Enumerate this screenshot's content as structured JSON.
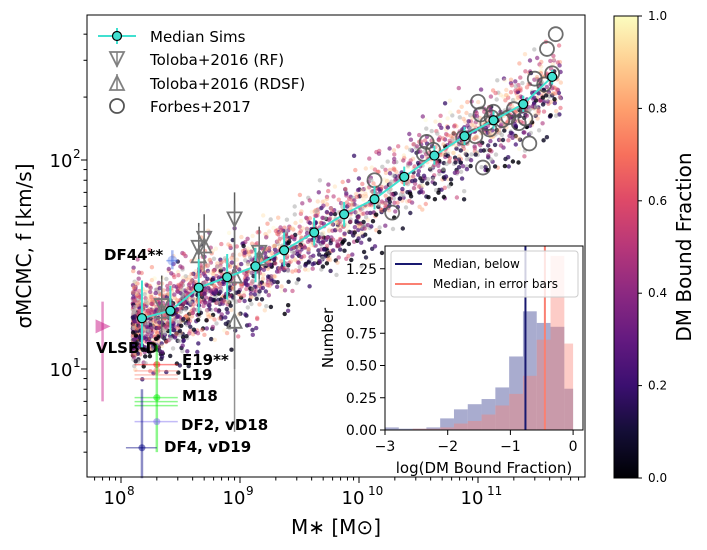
{
  "chart_data": [
    {
      "type": "scatter",
      "title": "",
      "xlabel": "M∗ [M⊙]",
      "ylabel": "σMCMC, f [km/s]",
      "xscale": "log",
      "yscale": "log",
      "xlim": [
        50000000.0,
        900000000000.0
      ],
      "ylim": [
        3,
        540
      ],
      "xticks": [
        {
          "value": 100000000.0,
          "base": "10",
          "exp": "8"
        },
        {
          "value": 1000000000.0,
          "base": "10",
          "exp": "9"
        },
        {
          "value": 10000000000.0,
          "base": "10",
          "exp": "10"
        },
        {
          "value": 100000000000.0,
          "base": "10",
          "exp": "11"
        }
      ],
      "yticks": [
        {
          "value": 10,
          "base": "10",
          "exp": "1"
        },
        {
          "value": 100,
          "base": "10",
          "exp": "2"
        }
      ],
      "legend": {
        "placement": "top-left",
        "entries": [
          {
            "label": "Median Sims",
            "marker": "circle-line",
            "color": "#40e0d0"
          },
          {
            "label": "Toloba+2016 (RF)",
            "marker": "triangle-down",
            "color": "#808080"
          },
          {
            "label": "Toloba+2016 (RDSF)",
            "marker": "triangle-up",
            "color": "#808080"
          },
          {
            "label": "Forbes+2017",
            "marker": "open-circle",
            "color": "#555555"
          }
        ]
      },
      "series": [
        {
          "name": "Median Sims",
          "color": "#40e0d0",
          "x": [
            150000000.0,
            260000000.0,
            450000000.0,
            780000000.0,
            1350000000.0,
            2350000000.0,
            4200000000.0,
            7500000000.0,
            13500000000.0,
            24000000000.0,
            43000000000.0,
            77000000000.0,
            135000000000.0,
            240000000000.0,
            420000000000.0
          ],
          "y": [
            17.5,
            19,
            24.5,
            27.5,
            31,
            37,
            45,
            55,
            65,
            83,
            105,
            130,
            155,
            185,
            250
          ],
          "yerr_low": [
            5,
            4.5,
            6,
            6,
            5,
            6,
            6,
            7,
            7,
            8,
            10,
            12,
            14,
            15,
            20
          ],
          "yerr_high": [
            9,
            6,
            9,
            8,
            7,
            8,
            8,
            8,
            10,
            10,
            12,
            14,
            16,
            18,
            20
          ]
        },
        {
          "name": "Toloba+2016 (RF)",
          "color": "#808080",
          "marker": "triangle-down",
          "points": [
            {
              "x": 220000000.0,
              "y": 20,
              "ylo": 14,
              "yhi": 28
            },
            {
              "x": 450000000.0,
              "y": 38,
              "ylo": 28,
              "yhi": 50
            },
            {
              "x": 500000000.0,
              "y": 42,
              "ylo": 32,
              "yhi": 55
            },
            {
              "x": 900000000.0,
              "y": 52,
              "ylo": 30,
              "yhi": 70
            },
            {
              "x": 1450000000.0,
              "y": 36,
              "ylo": 27,
              "yhi": 48
            }
          ]
        },
        {
          "name": "Toloba+2016 (RDSF)",
          "color": "#808080",
          "marker": "triangle-up",
          "points": [
            {
              "x": 220000000.0,
              "y": 19,
              "ylo": 14,
              "yhi": 27
            },
            {
              "x": 450000000.0,
              "y": 35,
              "ylo": 25,
              "yhi": 48
            },
            {
              "x": 500000000.0,
              "y": 39,
              "ylo": 29,
              "yhi": 52
            },
            {
              "x": 900000000.0,
              "y": 28,
              "ylo": 5,
              "yhi": 62
            },
            {
              "x": 900000000.0,
              "y": 17,
              "ylo": 10,
              "yhi": 27
            },
            {
              "x": 1450000000.0,
              "y": 34,
              "ylo": 25,
              "yhi": 46
            }
          ]
        },
        {
          "name": "Forbes+2017",
          "color": "#555555",
          "marker": "open-circle",
          "points": [
            {
              "x": 13500000000.0,
              "y": 80
            },
            {
              "x": 19000000000.0,
              "y": 56
            },
            {
              "x": 35000000000.0,
              "y": 107
            },
            {
              "x": 37000000000.0,
              "y": 122
            },
            {
              "x": 42000000000.0,
              "y": 112
            },
            {
              "x": 75000000000.0,
              "y": 128
            },
            {
              "x": 95000000000.0,
              "y": 130
            },
            {
              "x": 100000000000.0,
              "y": 190
            },
            {
              "x": 105000000000.0,
              "y": 165
            },
            {
              "x": 110000000000.0,
              "y": 92
            },
            {
              "x": 120000000000.0,
              "y": 150
            },
            {
              "x": 125000000000.0,
              "y": 140
            },
            {
              "x": 130000000000.0,
              "y": 160
            },
            {
              "x": 135000000000.0,
              "y": 170
            },
            {
              "x": 160000000000.0,
              "y": 155
            },
            {
              "x": 180000000000.0,
              "y": 160
            },
            {
              "x": 200000000000.0,
              "y": 175
            },
            {
              "x": 220000000000.0,
              "y": 150
            },
            {
              "x": 250000000000.0,
              "y": 158
            },
            {
              "x": 270000000000.0,
              "y": 120
            },
            {
              "x": 300000000000.0,
              "y": 245
            },
            {
              "x": 360000000000.0,
              "y": 230
            },
            {
              "x": 380000000000.0,
              "y": 340
            },
            {
              "x": 420000000000.0,
              "y": 260
            },
            {
              "x": 450000000000.0,
              "y": 400
            }
          ]
        }
      ],
      "annotations": [
        {
          "label": "DF44**",
          "color": "#4169e1",
          "x": 270000000.0,
          "y": 33,
          "xerr": [
            240000000.0,
            300000000.0
          ],
          "yerr": [
            30,
            37
          ],
          "marker": "x-circle"
        },
        {
          "label": "VLSB-D",
          "color": "#c71585",
          "x": 70000000.0,
          "y": 16,
          "yerr": [
            7,
            21
          ],
          "marker": "triangle-right",
          "labelpos": "below"
        },
        {
          "label": "E19**",
          "color": "#ff0000",
          "x": 200000000.0,
          "y": 10.5,
          "xerr": [
            130000000.0,
            300000000.0
          ]
        },
        {
          "label": "L19",
          "color": "#fa8072",
          "x": 200000000.0,
          "y": 9.8,
          "xerr": [
            130000000.0,
            300000000.0
          ]
        },
        {
          "label": "M18",
          "color": "#00ee00",
          "x": 200000000.0,
          "y": 7.3,
          "xerr": [
            130000000.0,
            300000000.0
          ],
          "yerr": [
            4,
            13
          ]
        },
        {
          "label": "DF2, vD18",
          "color": "#7b68ee",
          "x": 200000000.0,
          "y": 5.6,
          "xerr": [
            130000000.0,
            300000000.0
          ]
        },
        {
          "label": "DF4, vD19",
          "color": "#000080",
          "x": 150000000.0,
          "y": 4.2,
          "xerr": [
            110000000.0,
            200000000.0
          ],
          "yerr": [
            3,
            8
          ]
        }
      ],
      "colorbar": {
        "label": "DM Bound Fraction",
        "colormap": "magma",
        "range": [
          0.0,
          1.0
        ],
        "ticks": [
          "0.0",
          "0.2",
          "0.4",
          "0.6",
          "0.8",
          "1.0"
        ]
      },
      "scatter_description": "Several thousand simulated galaxies colored by DM bound fraction, following the median relation with scatter, spanning M* 1e8 to 5e11"
    },
    {
      "type": "bar",
      "subtype": "histogram",
      "xlabel": "log(DM Bound Fraction)",
      "ylabel": "Number",
      "xlim": [
        -3,
        0.1
      ],
      "ylim": [
        0,
        1.42
      ],
      "xticks": [
        "−3",
        "−2",
        "−1",
        "0"
      ],
      "xtick_values": [
        -3,
        -2,
        -1,
        0
      ],
      "yticks": [
        "0.00",
        "0.25",
        "0.50",
        "0.75",
        "1.00",
        "1.25"
      ],
      "ytick_values": [
        0,
        0.25,
        0.5,
        0.75,
        1.0,
        1.25
      ],
      "bin_edges": [
        -3.0,
        -2.78,
        -2.56,
        -2.34,
        -2.12,
        -1.9,
        -1.68,
        -1.46,
        -1.24,
        -1.02,
        -0.8,
        -0.58,
        -0.36,
        -0.14,
        0.0
      ],
      "series": [
        {
          "name": "below",
          "color": "#7b80b5",
          "values": [
            0.02,
            0.01,
            0.01,
            0.02,
            0.09,
            0.16,
            0.2,
            0.24,
            0.33,
            0.57,
            0.92,
            0.83,
            0.8,
            0.32
          ]
        },
        {
          "name": "in error bars",
          "color": "#fa8072",
          "values": [
            0.0,
            0.0,
            0.01,
            0.01,
            0.02,
            0.05,
            0.07,
            0.12,
            0.19,
            0.28,
            0.42,
            0.7,
            1.35,
            0.67
          ]
        }
      ],
      "median_lines": [
        {
          "label": "Median, below",
          "value": -0.76,
          "color": "#191970"
        },
        {
          "label": "Median, in error bars",
          "value": -0.45,
          "color": "#fa8072"
        }
      ],
      "legend": {
        "placement": "top-right"
      }
    }
  ]
}
